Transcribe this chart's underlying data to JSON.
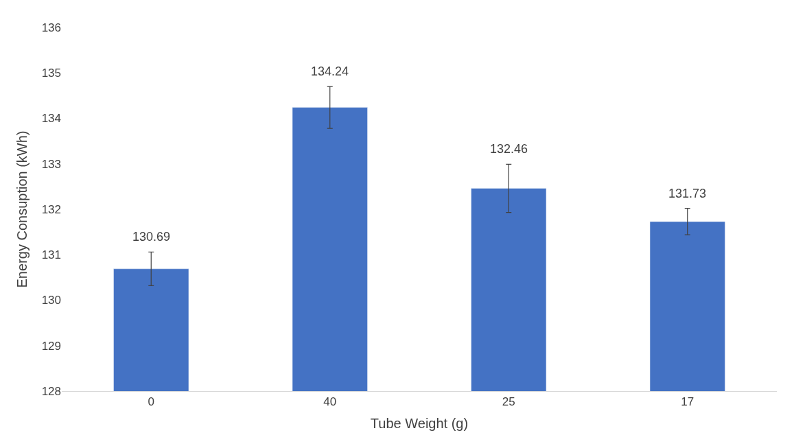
{
  "chart_data": {
    "type": "bar",
    "xlabel": "Tube Weight (g)",
    "ylabel": "Energy Consuption (kWh)",
    "categories": [
      "0",
      "40",
      "25",
      "17"
    ],
    "values": [
      130.69,
      134.24,
      132.46,
      131.73
    ],
    "errors": [
      0.37,
      0.46,
      0.53,
      0.29
    ],
    "color": "#4472c4",
    "data_labels": true,
    "ylim": [
      128,
      136
    ],
    "yticks": [
      128,
      129,
      130,
      131,
      132,
      133,
      134,
      135,
      136
    ]
  }
}
